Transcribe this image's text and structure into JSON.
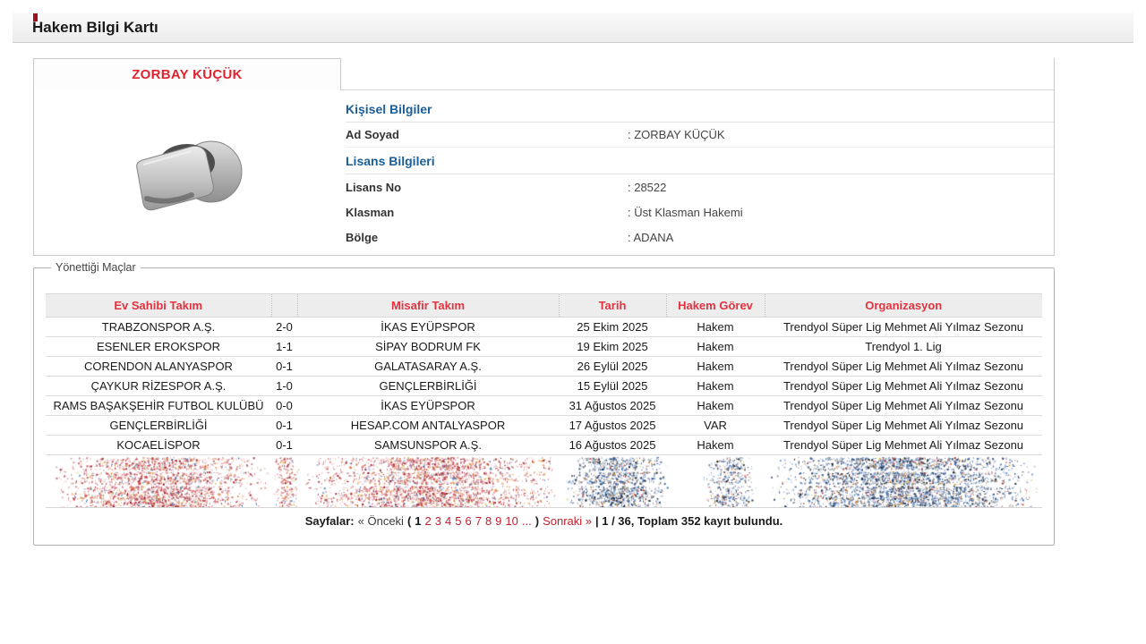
{
  "page": {
    "title": "Hakem Bilgi Kartı"
  },
  "profile": {
    "tab_name": "ZORBAY KÜÇÜK",
    "personal_heading": "Kişisel Bilgiler",
    "personal_fields": [
      {
        "label": "Ad Soyad",
        "value": ": ZORBAY KÜÇÜK"
      }
    ],
    "license_heading": "Lisans Bilgileri",
    "license_fields": [
      {
        "label": "Lisans No",
        "value": ": 28522"
      },
      {
        "label": "Klasman",
        "value": ": Üst Klasman Hakemi"
      },
      {
        "label": "Bölge",
        "value": ": ADANA"
      }
    ]
  },
  "matches": {
    "legend": "Yönettiği Maçlar",
    "columns": [
      "Ev Sahibi Takım",
      "",
      "Misafir Takım",
      "Tarih",
      "Hakem Görev",
      "Organizasyon"
    ],
    "rows": [
      {
        "home": "TRABZONSPOR A.Ş.",
        "score": "2-0",
        "away": "İKAS EYÜPSPOR",
        "date": "25 Ekim 2025",
        "role": "Hakem",
        "org": "Trendyol Süper Lig Mehmet Ali Yılmaz Sezonu"
      },
      {
        "home": "ESENLER EROKSPOR",
        "score": "1-1",
        "away": "SİPAY BODRUM FK",
        "date": "19 Ekim 2025",
        "role": "Hakem",
        "org": "Trendyol 1. Lig"
      },
      {
        "home": "CORENDON ALANYASPOR",
        "score": "0-1",
        "away": "GALATASARAY A.Ş.",
        "date": "26 Eylül 2025",
        "role": "Hakem",
        "org": "Trendyol Süper Lig Mehmet Ali Yılmaz Sezonu"
      },
      {
        "home": "ÇAYKUR RİZESPOR A.Ş.",
        "score": "1-0",
        "away": "GENÇLERBİRLİĞİ",
        "date": "15 Eylül 2025",
        "role": "Hakem",
        "org": "Trendyol Süper Lig Mehmet Ali Yılmaz Sezonu"
      },
      {
        "home": "RAMS BAŞAKŞEHİR FUTBOL KULÜBÜ",
        "score": "0-0",
        "away": "İKAS EYÜPSPOR",
        "date": "31 Ağustos 2025",
        "role": "Hakem",
        "org": "Trendyol Süper Lig Mehmet Ali Yılmaz Sezonu"
      },
      {
        "home": "GENÇLERBİRLİĞİ",
        "score": "0-1",
        "away": "HESAP.COM ANTALYASPOR",
        "date": "17 Ağustos 2025",
        "role": "VAR",
        "org": "Trendyol Süper Lig Mehmet Ali Yılmaz Sezonu"
      },
      {
        "home": "KOCAELİSPOR",
        "score": "0-1",
        "away": "SAMSUNSPOR A.Ş.",
        "date": "16 Ağustos 2025",
        "role": "Hakem",
        "org": "Trendyol Süper Lig Mehmet Ali Yılmaz Sezonu"
      }
    ]
  },
  "pagination": {
    "label": "Sayfalar:",
    "prev": "« Önceki",
    "open_paren": "(",
    "pages": [
      "1",
      "2",
      "3",
      "4",
      "5",
      "6",
      "7",
      "8",
      "9",
      "10",
      "..."
    ],
    "current_page": "1",
    "close_paren": ")",
    "next": "Sonraki »",
    "suffix": "| 1 / 36, Toplam 352 kayıt bulundu."
  },
  "noise": {
    "warm_colors": [
      "#a31227",
      "#c03a44",
      "#d96a6a",
      "#8f1a28",
      "#e09a9a",
      "#c22a2a",
      "#e67e22",
      "#2a6bb5",
      "#d4af37",
      "#efc7c7"
    ],
    "cool_colors": [
      "#16355e",
      "#2a5ca8",
      "#0d1b2e",
      "#3e6db5",
      "#141414",
      "#6c93c9",
      "#c0392b",
      "#d4922a",
      "#9db8d9"
    ]
  },
  "colors": {
    "accent_red": "#e4323f",
    "team_red": "#a01c30",
    "heading_blue": "#1b5e97",
    "link_red": "#c2202e"
  }
}
